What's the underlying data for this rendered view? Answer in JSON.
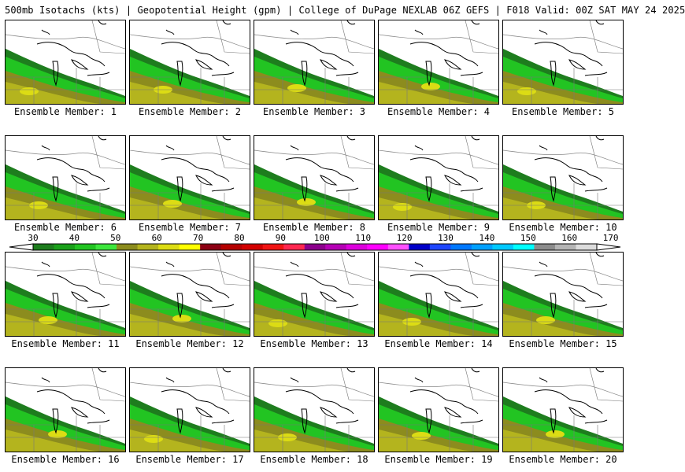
{
  "header": {
    "title": "500mb Isotachs (kts) | Geopotential Height (gpm) | College of DuPage NEXLAB   06Z GEFS | F018 Valid: 00Z SAT MAY 24 2025"
  },
  "panels": [
    {
      "label": "Ensemble Member: 1"
    },
    {
      "label": "Ensemble Member: 2"
    },
    {
      "label": "Ensemble Member: 3"
    },
    {
      "label": "Ensemble Member: 4"
    },
    {
      "label": "Ensemble Member: 5"
    },
    {
      "label": "Ensemble Member: 6"
    },
    {
      "label": "Ensemble Member: 7"
    },
    {
      "label": "Ensemble Member: 8"
    },
    {
      "label": "Ensemble Member: 9"
    },
    {
      "label": "Ensemble Member: 10"
    },
    {
      "label": "Ensemble Member: 11"
    },
    {
      "label": "Ensemble Member: 12"
    },
    {
      "label": "Ensemble Member: 13"
    },
    {
      "label": "Ensemble Member: 14"
    },
    {
      "label": "Ensemble Member: 15"
    },
    {
      "label": "Ensemble Member: 16"
    },
    {
      "label": "Ensemble Member: 17"
    },
    {
      "label": "Ensemble Member: 18"
    },
    {
      "label": "Ensemble Member: 19"
    },
    {
      "label": "Ensemble Member: 20"
    }
  ],
  "colorbar": {
    "labels": [
      "30",
      "40",
      "50",
      "60",
      "70",
      "80",
      "90",
      "100",
      "110",
      "120",
      "130",
      "140",
      "150",
      "160",
      "170"
    ],
    "colors": [
      "#1e7d1e",
      "#1aa01a",
      "#22c422",
      "#3de63d",
      "#8c8c1e",
      "#b4b41e",
      "#dcdc14",
      "#ffff00",
      "#8c0014",
      "#b40000",
      "#d20000",
      "#f01414",
      "#ff2850",
      "#8c008c",
      "#b400b4",
      "#dc00dc",
      "#ff00ff",
      "#ff50ff",
      "#0000c8",
      "#1e46ff",
      "#0078ff",
      "#00a0ff",
      "#00c8ff",
      "#00ffff",
      "#8c8c8c",
      "#b4b4b4",
      "#dcdcdc"
    ]
  }
}
